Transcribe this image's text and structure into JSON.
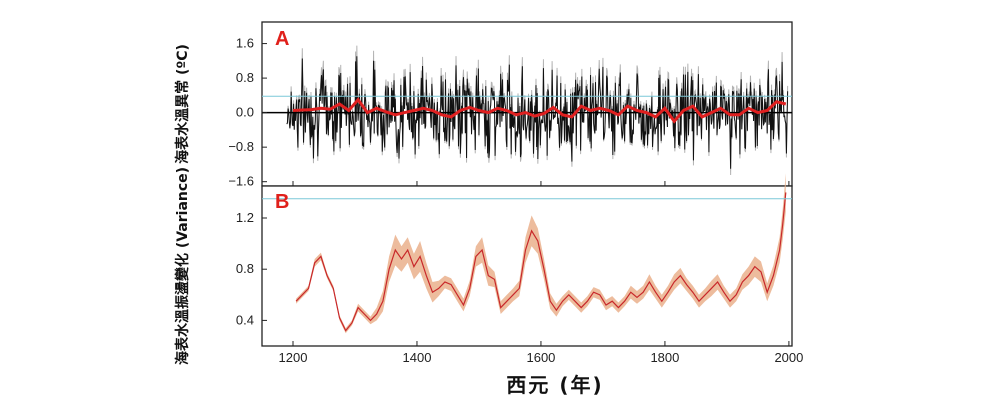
{
  "chart_data": [
    {
      "panel_label": "A",
      "type": "line",
      "ylabel": "海表水溫異常 (ºC)",
      "yticks": [
        "1.6",
        "0.8",
        "0.0",
        "−0.8",
        "−1.6"
      ],
      "ylim": [
        -1.7,
        2.1
      ],
      "xlim": [
        1150,
        2005
      ],
      "reference_line": 0.38,
      "colors": {
        "annual": "#111111",
        "band": "#b3b3b3",
        "smooth": "#e02020",
        "reference": "#7cc8d8"
      },
      "smooth": {
        "x": [
          1200,
          1215,
          1230,
          1245,
          1260,
          1275,
          1290,
          1305,
          1320,
          1335,
          1350,
          1365,
          1380,
          1395,
          1410,
          1425,
          1440,
          1455,
          1470,
          1485,
          1500,
          1515,
          1530,
          1545,
          1560,
          1575,
          1590,
          1605,
          1620,
          1635,
          1650,
          1665,
          1680,
          1695,
          1710,
          1725,
          1740,
          1755,
          1770,
          1785,
          1800,
          1815,
          1830,
          1845,
          1860,
          1875,
          1890,
          1905,
          1920,
          1935,
          1950,
          1965,
          1980,
          1995
        ],
        "y": [
          0.05,
          0.06,
          0.07,
          0.1,
          0.08,
          0.2,
          0.05,
          0.3,
          0.0,
          0.1,
          0.02,
          -0.05,
          0.0,
          0.05,
          0.1,
          0.05,
          -0.05,
          -0.1,
          0.05,
          0.12,
          0.05,
          0.0,
          0.1,
          0.05,
          -0.05,
          0.0,
          -0.08,
          -0.02,
          0.12,
          -0.05,
          -0.1,
          0.15,
          0.05,
          0.1,
          0.05,
          -0.05,
          0.15,
          0.05,
          0.0,
          -0.1,
          0.1,
          -0.2,
          0.05,
          0.15,
          -0.1,
          0.0,
          0.1,
          -0.05,
          -0.05,
          0.1,
          0.0,
          0.05,
          0.25,
          0.2
        ]
      }
    },
    {
      "panel_label": "B",
      "type": "line",
      "ylabel": "海表水溫振盪變化 (Variance)",
      "yticks": [
        "1.2",
        "0.8",
        "0.4"
      ],
      "ylim": [
        0.2,
        1.45
      ],
      "xlim": [
        1150,
        2005
      ],
      "reference_line": 1.35,
      "colors": {
        "line": "#c8282a",
        "band": "#eab08c",
        "reference": "#7cc8d8"
      },
      "x": [
        1205,
        1215,
        1225,
        1235,
        1245,
        1255,
        1265,
        1275,
        1285,
        1295,
        1305,
        1315,
        1325,
        1335,
        1345,
        1355,
        1365,
        1375,
        1385,
        1395,
        1405,
        1415,
        1425,
        1435,
        1445,
        1455,
        1465,
        1475,
        1485,
        1495,
        1505,
        1515,
        1525,
        1535,
        1545,
        1555,
        1565,
        1575,
        1585,
        1595,
        1605,
        1615,
        1625,
        1635,
        1645,
        1655,
        1665,
        1675,
        1685,
        1695,
        1705,
        1715,
        1725,
        1735,
        1745,
        1755,
        1765,
        1775,
        1785,
        1795,
        1805,
        1815,
        1825,
        1835,
        1845,
        1855,
        1865,
        1875,
        1885,
        1895,
        1905,
        1915,
        1925,
        1935,
        1945,
        1955,
        1965,
        1975,
        1985,
        1990,
        1995
      ],
      "values": [
        0.55,
        0.6,
        0.65,
        0.85,
        0.9,
        0.75,
        0.65,
        0.42,
        0.32,
        0.38,
        0.5,
        0.45,
        0.4,
        0.45,
        0.55,
        0.8,
        0.95,
        0.88,
        0.95,
        0.82,
        0.9,
        0.75,
        0.62,
        0.65,
        0.7,
        0.68,
        0.6,
        0.52,
        0.65,
        0.9,
        0.95,
        0.75,
        0.72,
        0.5,
        0.55,
        0.6,
        0.65,
        0.95,
        1.1,
        1.02,
        0.8,
        0.55,
        0.48,
        0.55,
        0.6,
        0.55,
        0.5,
        0.55,
        0.62,
        0.6,
        0.52,
        0.55,
        0.5,
        0.55,
        0.62,
        0.58,
        0.62,
        0.7,
        0.62,
        0.55,
        0.62,
        0.7,
        0.75,
        0.68,
        0.62,
        0.55,
        0.6,
        0.65,
        0.7,
        0.62,
        0.55,
        0.6,
        0.7,
        0.75,
        0.82,
        0.78,
        0.62,
        0.75,
        0.95,
        1.15,
        1.4
      ],
      "band_half_width": [
        0.02,
        0.02,
        0.02,
        0.03,
        0.03,
        0.02,
        0.02,
        0.02,
        0.02,
        0.02,
        0.03,
        0.03,
        0.03,
        0.05,
        0.08,
        0.1,
        0.12,
        0.1,
        0.1,
        0.1,
        0.12,
        0.1,
        0.08,
        0.06,
        0.05,
        0.05,
        0.05,
        0.05,
        0.06,
        0.08,
        0.1,
        0.08,
        0.06,
        0.05,
        0.05,
        0.05,
        0.06,
        0.1,
        0.12,
        0.1,
        0.08,
        0.06,
        0.05,
        0.04,
        0.04,
        0.04,
        0.04,
        0.04,
        0.04,
        0.04,
        0.04,
        0.04,
        0.04,
        0.04,
        0.05,
        0.05,
        0.05,
        0.06,
        0.05,
        0.05,
        0.05,
        0.06,
        0.06,
        0.05,
        0.05,
        0.05,
        0.05,
        0.06,
        0.06,
        0.05,
        0.05,
        0.05,
        0.06,
        0.07,
        0.08,
        0.08,
        0.07,
        0.08,
        0.1,
        0.12,
        0.15
      ]
    }
  ],
  "xaxis": {
    "ticks": [
      1200,
      1400,
      1600,
      1800,
      2000
    ],
    "label": "西元 (年)"
  }
}
